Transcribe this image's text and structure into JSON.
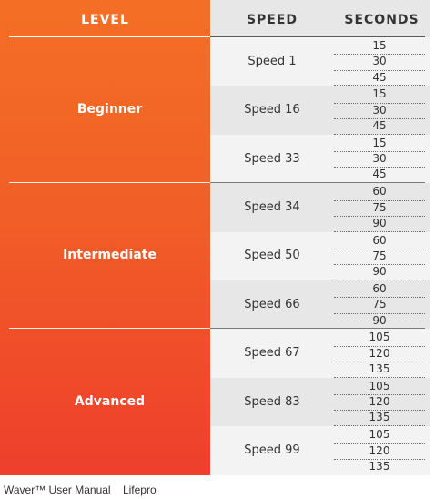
{
  "table": {
    "headers": {
      "level": "LEVEL",
      "speed": "SPEED",
      "seconds": "SECONDS"
    },
    "levels": [
      {
        "name": "Beginner",
        "speeds": [
          {
            "label": "Speed 1",
            "seconds": [
              "15",
              "30",
              "45"
            ]
          },
          {
            "label": "Speed 16",
            "seconds": [
              "15",
              "30",
              "45"
            ]
          },
          {
            "label": "Speed 33",
            "seconds": [
              "15",
              "30",
              "45"
            ]
          }
        ]
      },
      {
        "name": "Intermediate",
        "speeds": [
          {
            "label": "Speed 34",
            "seconds": [
              "60",
              "75",
              "90"
            ]
          },
          {
            "label": "Speed 50",
            "seconds": [
              "60",
              "75",
              "90"
            ]
          },
          {
            "label": "Speed 66",
            "seconds": [
              "60",
              "75",
              "90"
            ]
          }
        ]
      },
      {
        "name": "Advanced",
        "speeds": [
          {
            "label": "Speed 67",
            "seconds": [
              "105",
              "120",
              "135"
            ]
          },
          {
            "label": "Speed 83",
            "seconds": [
              "105",
              "120",
              "135"
            ]
          },
          {
            "label": "Speed 99",
            "seconds": [
              "105",
              "120",
              "135"
            ]
          }
        ]
      }
    ]
  },
  "footer": {
    "manual": "Waver™ User Manual",
    "brand": "Lifepro"
  },
  "colors": {
    "level_top": "#f46f25",
    "level_bottom": "#ee3f2c",
    "band_light": "#f3f3f3",
    "band_dark": "#e7e7e7"
  }
}
